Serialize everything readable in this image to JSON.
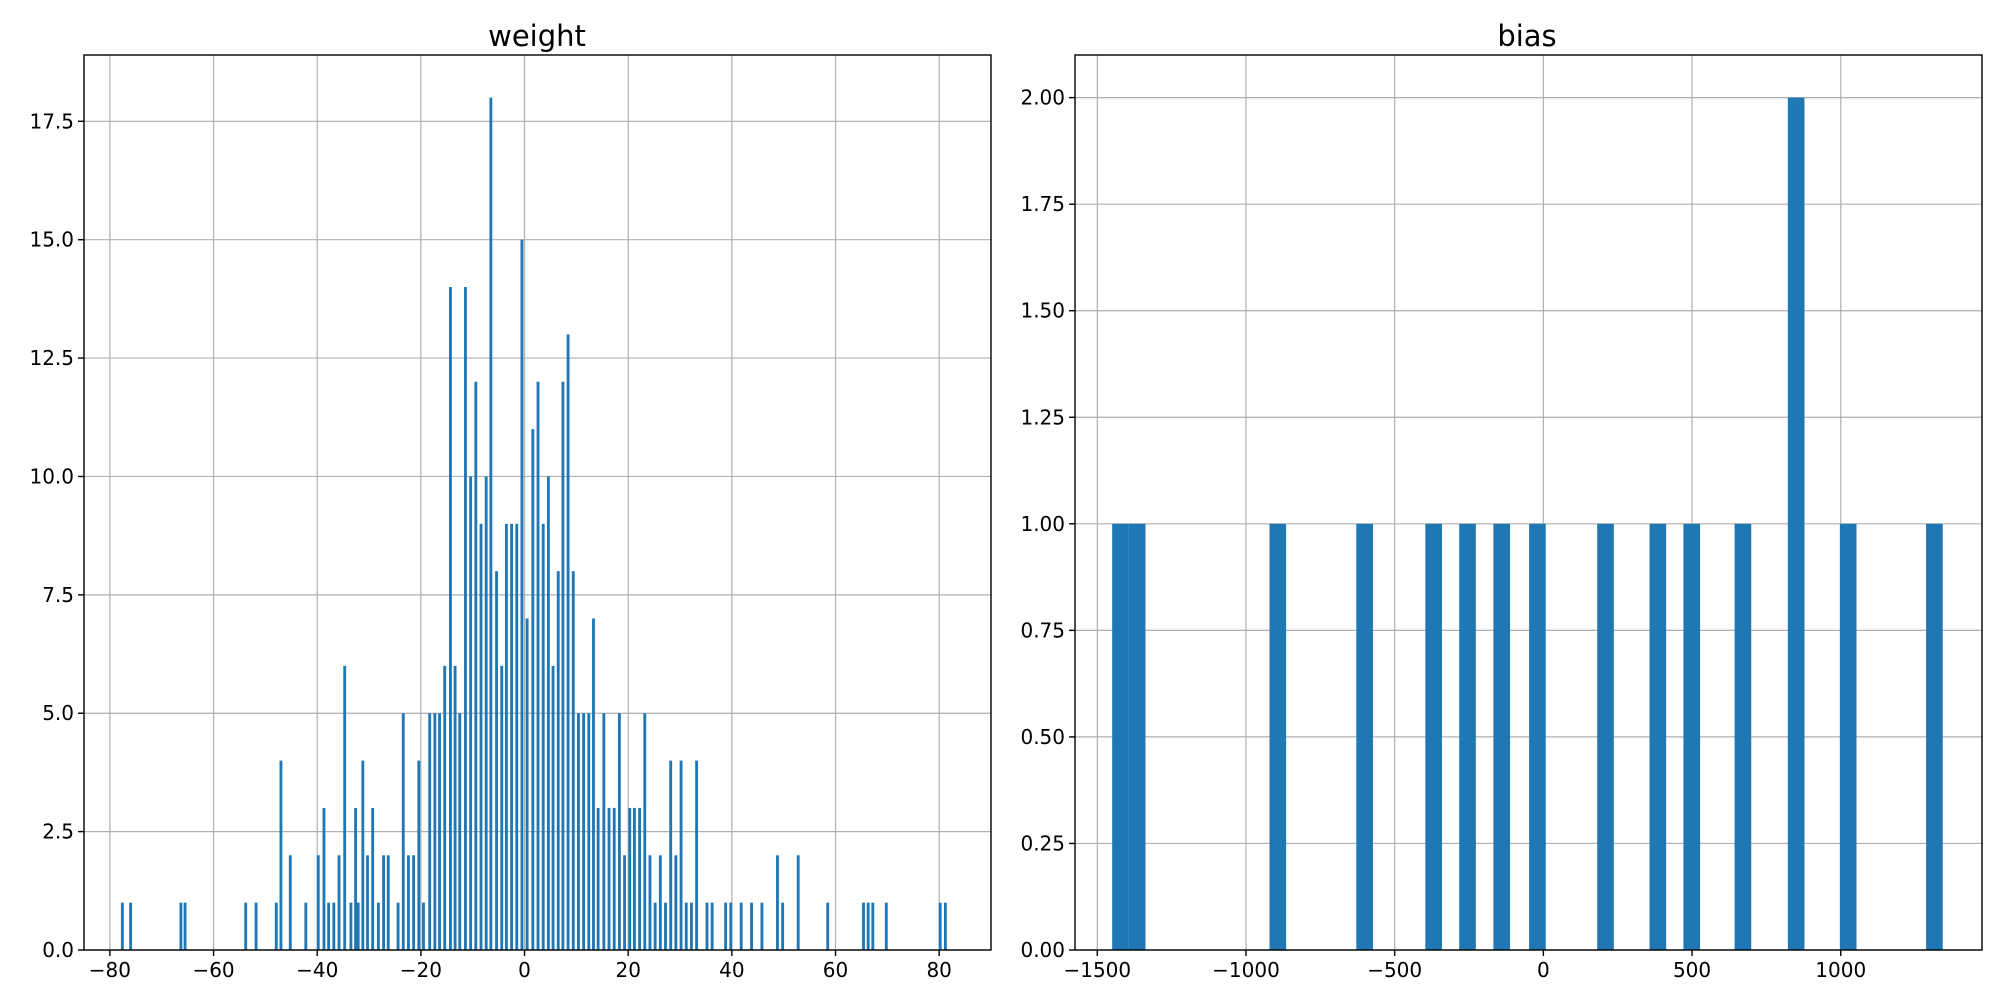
{
  "chart_data": [
    {
      "type": "bar",
      "title": "weight",
      "xlabel": "",
      "ylabel": "",
      "xlim": [
        -85,
        90
      ],
      "ylim": [
        0,
        18.9
      ],
      "xticks": [
        -80,
        -60,
        -40,
        -20,
        0,
        20,
        40,
        60,
        80
      ],
      "xtick_labels": [
        "−80",
        "−60",
        "−40",
        "−20",
        "0",
        "20",
        "40",
        "60",
        "80"
      ],
      "yticks": [
        0,
        2.5,
        5,
        7.5,
        10,
        12.5,
        15,
        17.5
      ],
      "ytick_labels": [
        "0.0",
        "2.5",
        "5.0",
        "7.5",
        "10.0",
        "12.5",
        "15.0",
        "17.5"
      ],
      "grid": true,
      "bar_color": "#1f77b4",
      "bin_width": 0.55,
      "x": [
        -77.6,
        -76,
        -66.3,
        -65.5,
        -53.8,
        -51.8,
        -47.9,
        -47,
        -45.2,
        -42.2,
        -39.8,
        -38.7,
        -37.8,
        -36.8,
        -35.8,
        -34.7,
        -33.5,
        -32.6,
        -32.1,
        -31.2,
        -30.3,
        -29.3,
        -28.2,
        -27.2,
        -26.3,
        -24.4,
        -23.4,
        -22.4,
        -21.4,
        -20.4,
        -19.5,
        -18.3,
        -17.3,
        -16.4,
        -15.4,
        -14.3,
        -13.4,
        -12.5,
        -11.4,
        -10.4,
        -9.4,
        -8.4,
        -7.4,
        -6.5,
        -5.4,
        -4.4,
        -3.5,
        -2.5,
        -1.5,
        -0.5,
        0.5,
        1.6,
        2.6,
        3.6,
        4.6,
        5.5,
        6.5,
        7.4,
        8.4,
        9.4,
        10.4,
        11.4,
        12.4,
        13.3,
        14.2,
        15.3,
        16.3,
        17.3,
        18.3,
        19.3,
        20.3,
        21.2,
        22.2,
        23.2,
        24.2,
        25.2,
        26.2,
        27.2,
        28.2,
        29.2,
        30.2,
        31.2,
        32.2,
        33.2,
        35.2,
        36.2,
        38.8,
        39.8,
        41.8,
        43.8,
        45.8,
        48.8,
        49.8,
        52.8,
        58.5,
        65.4,
        66.3,
        67.2,
        69.8,
        80.2,
        81.2
      ],
      "values": [
        1,
        1,
        1,
        1,
        1,
        1,
        1,
        4,
        2,
        1,
        2,
        3,
        1,
        1,
        2,
        6,
        1,
        3,
        1,
        4,
        2,
        3,
        1,
        2,
        2,
        1,
        5,
        2,
        2,
        4,
        1,
        5,
        5,
        5,
        6,
        14,
        6,
        5,
        14,
        10,
        12,
        9,
        10,
        18,
        8,
        6,
        9,
        9,
        9,
        15,
        7,
        11,
        12,
        9,
        10,
        6,
        8,
        12,
        13,
        8,
        5,
        5,
        5,
        7,
        3,
        5,
        3,
        3,
        5,
        2,
        3,
        3,
        3,
        5,
        2,
        1,
        2,
        1,
        4,
        2,
        4,
        1,
        1,
        4,
        1,
        1,
        1,
        1,
        1,
        1,
        1,
        2,
        1,
        2,
        1,
        1,
        1,
        1,
        1,
        1,
        1
      ]
    },
    {
      "type": "bar",
      "title": "bias",
      "xlabel": "",
      "ylabel": "",
      "xlim": [
        -1575,
        1475
      ],
      "ylim": [
        0,
        2.1
      ],
      "xticks": [
        -1500,
        -1000,
        -500,
        0,
        500,
        1000
      ],
      "xtick_labels": [
        "−1500",
        "−1000",
        "−500",
        "0",
        "500",
        "1000"
      ],
      "yticks": [
        0,
        0.25,
        0.5,
        0.75,
        1.0,
        1.25,
        1.5,
        1.75,
        2.0
      ],
      "ytick_labels": [
        "0.00",
        "0.25",
        "0.50",
        "0.75",
        "1.00",
        "1.25",
        "1.50",
        "1.75",
        "2.00"
      ],
      "grid": true,
      "bar_color": "#1f77b4",
      "bin_width": 56,
      "x": [
        -1422,
        -1366,
        -893,
        -601,
        -369,
        -255,
        -140,
        -20,
        209,
        385,
        499,
        671,
        850,
        1025,
        1315
      ],
      "values": [
        1,
        1,
        1,
        1,
        1,
        1,
        1,
        1,
        1,
        1,
        1,
        1,
        2,
        1,
        1
      ]
    }
  ]
}
